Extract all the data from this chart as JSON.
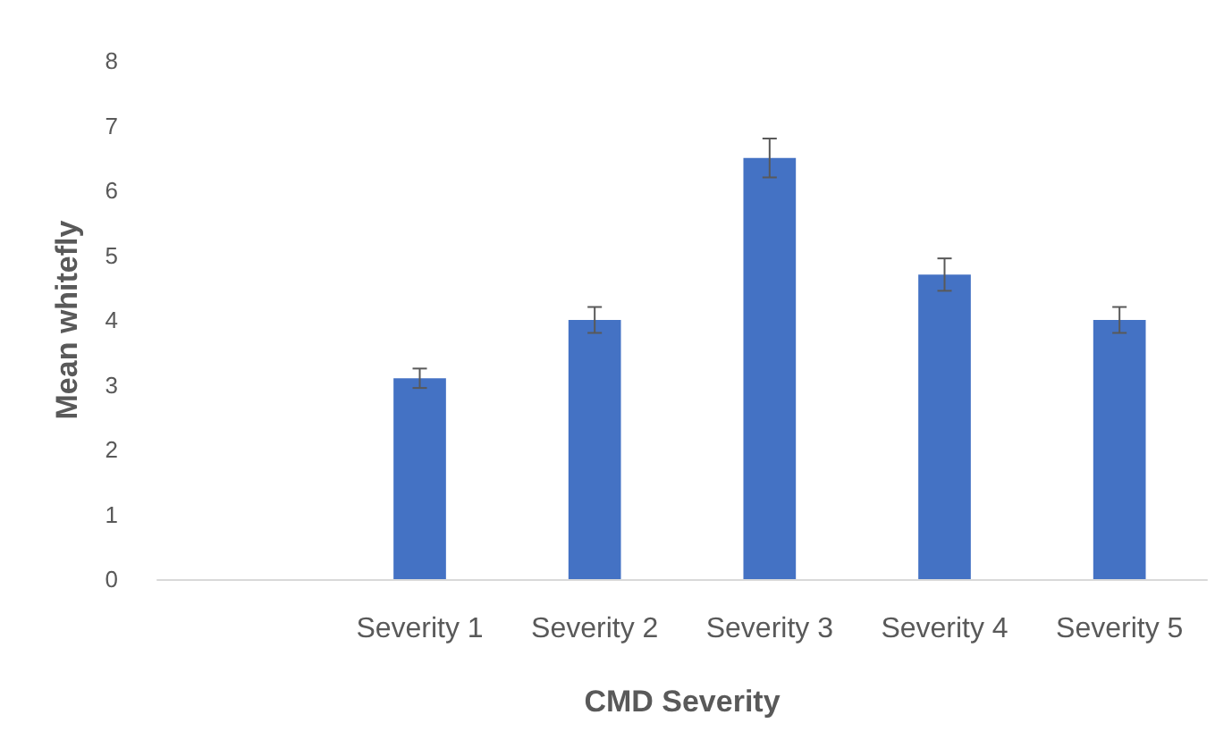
{
  "chart_data": {
    "type": "bar",
    "xlabel": "CMD Severity",
    "ylabel": "Mean whitefly",
    "categories": [
      null,
      "Severity 1",
      "Severity 2",
      "Severity 3",
      "Severity 4",
      "Severity 5"
    ],
    "values": [
      null,
      3.1,
      4.0,
      6.5,
      4.7,
      4.0
    ],
    "errors": [
      null,
      0.15,
      0.2,
      0.3,
      0.25,
      0.2
    ],
    "color": "#4472c4",
    "ylim": [
      0,
      8
    ],
    "yticks": [
      0,
      1,
      2,
      3,
      4,
      5,
      6,
      7,
      8
    ],
    "grid": false
  }
}
